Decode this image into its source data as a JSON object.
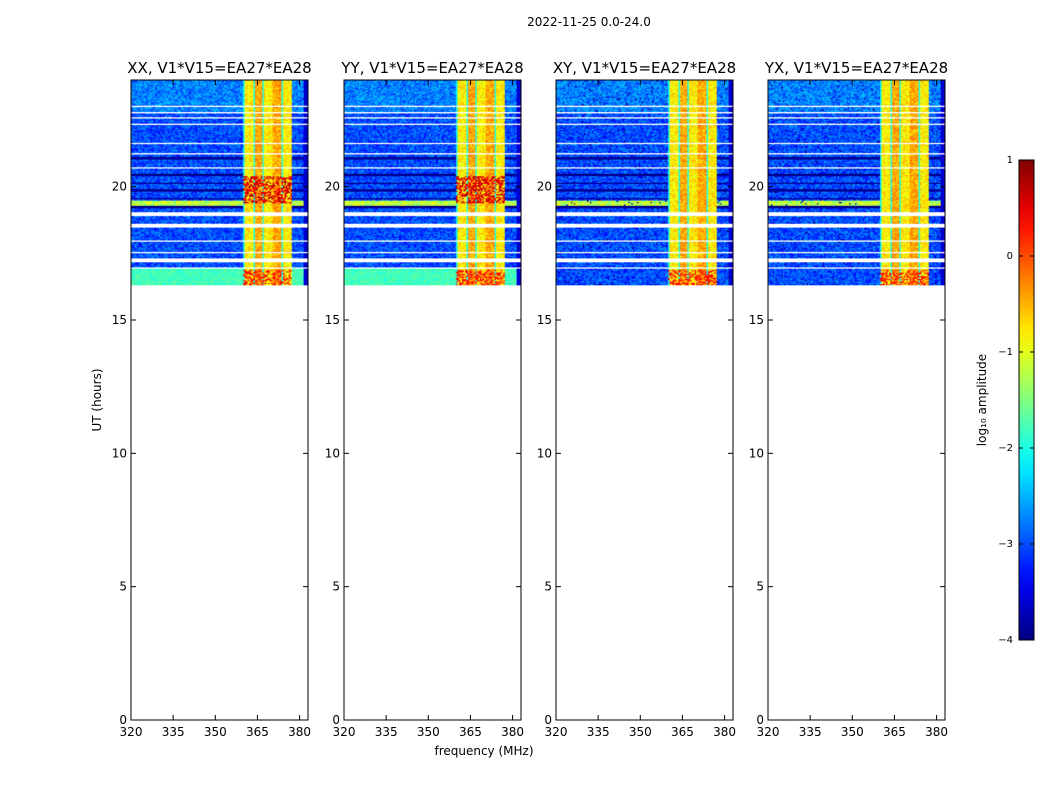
{
  "suptitle": "2022-11-25 0.0-24.0",
  "chart_data": {
    "type": "heatmap",
    "title": "2022-11-25 0.0-24.0",
    "xlabel": "frequency (MHz)",
    "ylabel": "UT (hours)",
    "xlim": [
      320,
      383
    ],
    "ylim": [
      0,
      24
    ],
    "xticks": [
      320,
      335,
      350,
      365,
      380
    ],
    "yticks": [
      0,
      5,
      10,
      15,
      20
    ],
    "data_ut_range": [
      16.3,
      24
    ],
    "rfi_band_mhz": [
      360,
      377
    ],
    "panels": [
      {
        "title": "XX, V1*V15=EA27*EA28",
        "pol": "XX",
        "seed": 11
      },
      {
        "title": "YY, V1*V15=EA27*EA28",
        "pol": "YY",
        "seed": 23
      },
      {
        "title": "XY, V1*V15=EA27*EA28",
        "pol": "XY",
        "seed": 37
      },
      {
        "title": "YX, V1*V15=EA27*EA28",
        "pol": "YX",
        "seed": 51
      }
    ],
    "colorbar": {
      "label": "log₁₀ amplitude",
      "min": -4,
      "max": 1,
      "ticks": [
        -4,
        -3,
        -2,
        -1,
        0,
        1
      ],
      "tick_labels": [
        "−4",
        "−3",
        "−2",
        "−1",
        "0",
        "1"
      ],
      "colormap": "jet"
    }
  }
}
